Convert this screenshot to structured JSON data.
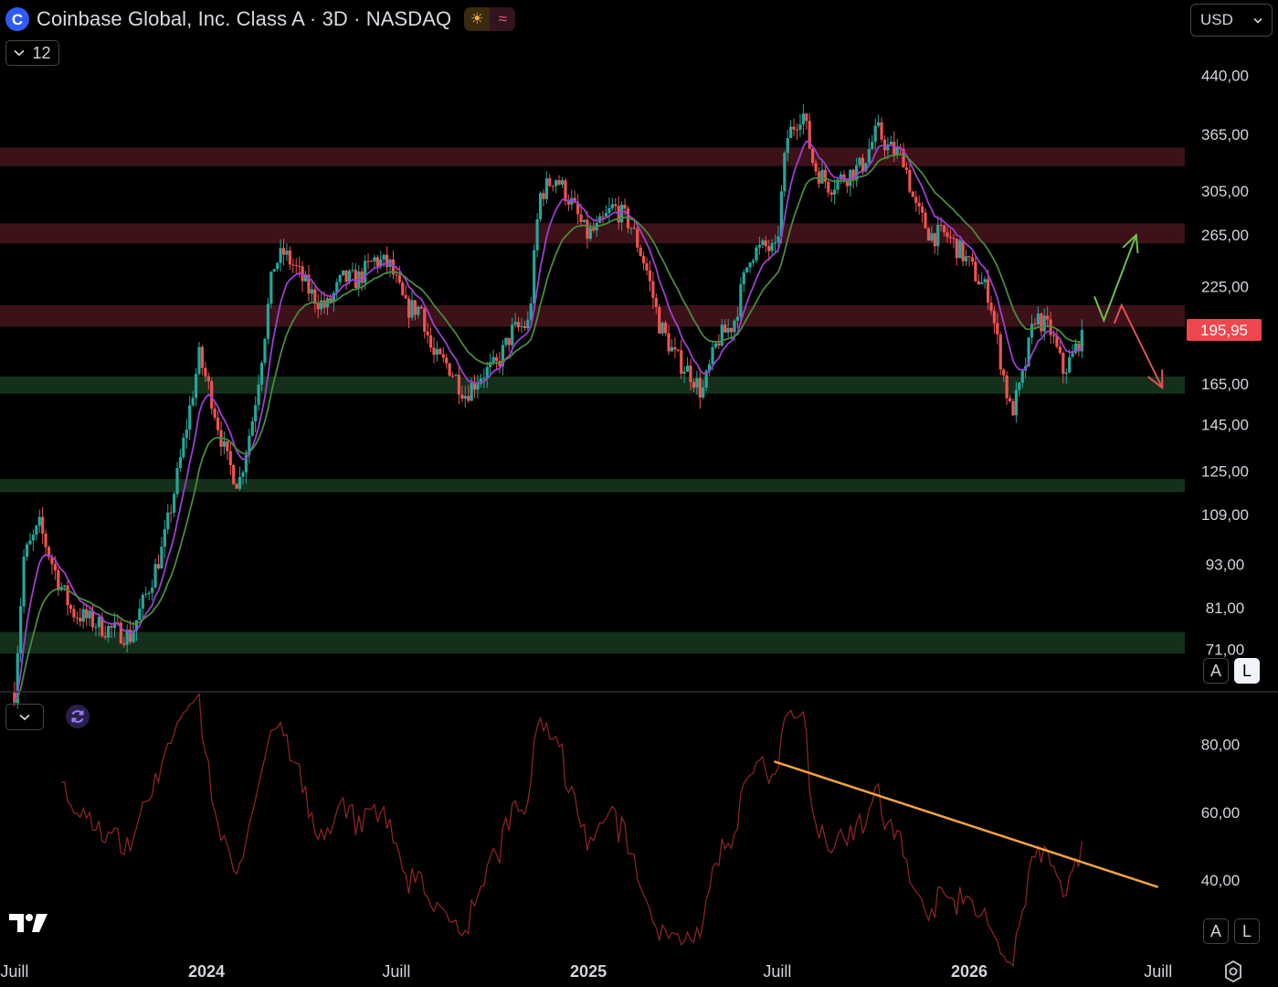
{
  "header": {
    "logo_letter": "C",
    "title": "Coinbase Global, Inc. Class A · 3D · NASDAQ",
    "badge_sun": "☀",
    "badge_wave": "≈",
    "interval_value": "12",
    "currency": "USD"
  },
  "controls": {
    "auto_label": "A",
    "log_label": "L",
    "auto_label_2": "A",
    "log_label_2": "L"
  },
  "colors": {
    "up": "#26a69a",
    "down": "#ef5350",
    "ema_fast": "#9c3fd1",
    "ema_slow": "#4a8a3c",
    "resistance_zone": "#3c1218",
    "support_zone": "#15301a",
    "rsi_line": "#8a2424",
    "trendline": "#f5a340",
    "arrow_up": "#6fbf4a",
    "arrow_down": "#e0505a",
    "price_label_bg": "#f0464e"
  },
  "chart_data": [
    {
      "type": "candlestick",
      "title": "Coinbase Global, Inc. Class A · 3D · NASDAQ",
      "scale": "log",
      "ylim": [
        62,
        470
      ],
      "y_ticks": [
        "440,00",
        "365,00",
        "305,00",
        "265,00",
        "225,00",
        "195,95",
        "165,00",
        "145,00",
        "125,00",
        "109,00",
        "93,00",
        "81,00",
        "71,00"
      ],
      "y_tick_values": [
        440,
        365,
        305,
        265,
        225,
        195.95,
        165,
        145,
        125,
        109,
        93,
        81,
        71
      ],
      "current_price": 195.95,
      "current_price_label": "195,95",
      "x_labels": [
        "Juill",
        "2024",
        "Juill",
        "2025",
        "Juill",
        "2026",
        "Juill"
      ],
      "x_label_dates": [
        "2023-07",
        "2024-01",
        "2024-07",
        "2025-01",
        "2025-07",
        "2026-01",
        "2026-07"
      ],
      "price_path": [
        [
          "2023-07-01",
          62
        ],
        [
          "2023-07-10",
          95
        ],
        [
          "2023-07-25",
          105
        ],
        [
          "2023-08-10",
          90
        ],
        [
          "2023-08-25",
          80
        ],
        [
          "2023-09-10",
          78
        ],
        [
          "2023-09-25",
          76
        ],
        [
          "2023-10-10",
          75
        ],
        [
          "2023-10-20",
          74
        ],
        [
          "2023-11-05",
          85
        ],
        [
          "2023-11-20",
          98
        ],
        [
          "2023-12-05",
          125
        ],
        [
          "2023-12-15",
          150
        ],
        [
          "2023-12-25",
          180
        ],
        [
          "2024-01-05",
          160
        ],
        [
          "2024-01-20",
          130
        ],
        [
          "2024-02-01",
          120
        ],
        [
          "2024-02-15",
          150
        ],
        [
          "2024-02-25",
          190
        ],
        [
          "2024-03-05",
          240
        ],
        [
          "2024-03-15",
          250
        ],
        [
          "2024-03-25",
          240
        ],
        [
          "2024-04-10",
          220
        ],
        [
          "2024-04-25",
          210
        ],
        [
          "2024-05-10",
          230
        ],
        [
          "2024-05-25",
          230
        ],
        [
          "2024-06-10",
          245
        ],
        [
          "2024-06-25",
          240
        ],
        [
          "2024-07-10",
          210
        ],
        [
          "2024-07-25",
          210
        ],
        [
          "2024-08-05",
          180
        ],
        [
          "2024-08-20",
          175
        ],
        [
          "2024-09-05",
          160
        ],
        [
          "2024-09-20",
          170
        ],
        [
          "2024-10-05",
          175
        ],
        [
          "2024-10-20",
          195
        ],
        [
          "2024-11-05",
          200
        ],
        [
          "2024-11-15",
          300
        ],
        [
          "2024-11-30",
          320
        ],
        [
          "2024-12-15",
          295
        ],
        [
          "2024-12-30",
          265
        ],
        [
          "2025-01-10",
          270
        ],
        [
          "2025-01-25",
          290
        ],
        [
          "2025-02-10",
          275
        ],
        [
          "2025-02-25",
          240
        ],
        [
          "2025-03-10",
          200
        ],
        [
          "2025-03-25",
          180
        ],
        [
          "2025-04-10",
          170
        ],
        [
          "2025-04-20",
          160
        ],
        [
          "2025-05-05",
          190
        ],
        [
          "2025-05-20",
          200
        ],
        [
          "2025-06-05",
          250
        ],
        [
          "2025-06-20",
          255
        ],
        [
          "2025-06-30",
          250
        ],
        [
          "2025-07-10",
          360
        ],
        [
          "2025-07-25",
          395
        ],
        [
          "2025-08-05",
          330
        ],
        [
          "2025-08-20",
          310
        ],
        [
          "2025-09-05",
          320
        ],
        [
          "2025-09-20",
          330
        ],
        [
          "2025-10-05",
          370
        ],
        [
          "2025-10-15",
          350
        ],
        [
          "2025-10-30",
          340
        ],
        [
          "2025-11-10",
          290
        ],
        [
          "2025-11-25",
          265
        ],
        [
          "2025-12-10",
          265
        ],
        [
          "2025-12-25",
          250
        ],
        [
          "2026-01-10",
          230
        ],
        [
          "2026-01-20",
          220
        ],
        [
          "2026-02-01",
          175
        ],
        [
          "2026-02-10",
          150
        ],
        [
          "2026-02-20",
          165
        ],
        [
          "2026-03-05",
          205
        ],
        [
          "2026-03-20",
          195
        ],
        [
          "2026-04-01",
          172
        ],
        [
          "2026-04-10",
          180
        ],
        [
          "2026-04-20",
          196
        ]
      ],
      "zones": [
        {
          "kind": "resistance",
          "low": 330,
          "high": 350
        },
        {
          "kind": "resistance",
          "low": 258,
          "high": 275
        },
        {
          "kind": "resistance",
          "low": 198,
          "high": 212
        },
        {
          "kind": "support",
          "low": 160,
          "high": 169
        },
        {
          "kind": "support",
          "low": 117,
          "high": 122
        },
        {
          "kind": "support",
          "low": 70,
          "high": 75
        }
      ],
      "ema_fast_period": 9,
      "ema_slow_period": 21,
      "projection_up": [
        [
          "2026-05-01",
          218
        ],
        [
          "2026-05-10",
          202
        ],
        [
          "2026-06-10",
          265
        ],
        [
          "2026-06-17",
          258
        ]
      ],
      "projection_down": [
        [
          "2026-05-20",
          200
        ],
        [
          "2026-05-27",
          212
        ],
        [
          "2026-07-05",
          163
        ],
        [
          "2026-07-08",
          170
        ]
      ]
    },
    {
      "type": "line",
      "indicator": "RSI",
      "ylim": [
        18,
        92
      ],
      "y_ticks": [
        "80,00",
        "60,00",
        "40,00"
      ],
      "y_tick_values": [
        80,
        60,
        40
      ],
      "trendline": [
        [
          "2025-06-28",
          75
        ],
        [
          "2026-07-01",
          38
        ]
      ]
    }
  ]
}
